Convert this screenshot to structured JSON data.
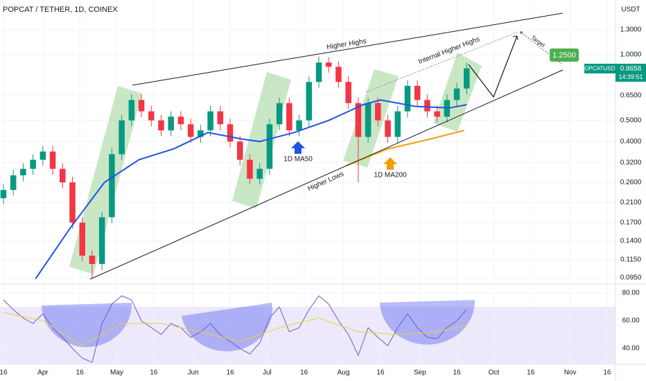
{
  "chart_data": [
    {
      "type": "candlestick",
      "title": "POPCAT / TETHER, 1D, COINEX",
      "currency": "USDT",
      "symbol": "POPCATUSDT",
      "last_price": "0.8658",
      "countdown": "14:39:51",
      "up_color": "#089981",
      "down_color": "#f23645",
      "log_y": true,
      "grid": true,
      "x": [
        0,
        4,
        8,
        12,
        16,
        20,
        24,
        28,
        32,
        36,
        40,
        44,
        48,
        52,
        56,
        60,
        64,
        68,
        72,
        76,
        80,
        84,
        88,
        92,
        96,
        100,
        104,
        108,
        112,
        116,
        120,
        124,
        128,
        132,
        136,
        140,
        144,
        148,
        152,
        156,
        160,
        164,
        168,
        172,
        176,
        180,
        184,
        188
      ],
      "open": [
        0.22,
        0.24,
        0.28,
        0.3,
        0.33,
        0.36,
        0.3,
        0.26,
        0.17,
        0.12,
        0.11,
        0.18,
        0.35,
        0.5,
        0.62,
        0.55,
        0.5,
        0.45,
        0.52,
        0.48,
        0.42,
        0.45,
        0.55,
        0.48,
        0.4,
        0.33,
        0.27,
        0.3,
        0.48,
        0.6,
        0.45,
        0.5,
        0.75,
        0.92,
        0.88,
        0.75,
        0.6,
        0.42,
        0.6,
        0.5,
        0.42,
        0.55,
        0.72,
        0.62,
        0.55,
        0.52,
        0.62,
        0.7
      ],
      "high": [
        0.255,
        0.297,
        0.318,
        0.35,
        0.382,
        0.382,
        0.318,
        0.276,
        0.18,
        0.127,
        0.191,
        0.371,
        0.53,
        0.657,
        0.657,
        0.583,
        0.53,
        0.551,
        0.551,
        0.509,
        0.477,
        0.583,
        0.583,
        0.509,
        0.424,
        0.35,
        0.318,
        0.509,
        0.636,
        0.636,
        0.53,
        0.795,
        0.98,
        0.975,
        0.933,
        0.795,
        0.636,
        0.636,
        0.636,
        0.53,
        0.583,
        0.763,
        0.763,
        0.657,
        0.583,
        0.657,
        0.742,
        0.918
      ],
      "low": [
        0.207,
        0.226,
        0.263,
        0.282,
        0.31,
        0.282,
        0.244,
        0.16,
        0.113,
        0.095,
        0.103,
        0.169,
        0.329,
        0.47,
        0.517,
        0.47,
        0.423,
        0.423,
        0.451,
        0.395,
        0.395,
        0.423,
        0.451,
        0.376,
        0.31,
        0.254,
        0.254,
        0.282,
        0.451,
        0.423,
        0.423,
        0.47,
        0.705,
        0.827,
        0.705,
        0.564,
        0.26,
        0.395,
        0.47,
        0.395,
        0.395,
        0.517,
        0.583,
        0.517,
        0.489,
        0.489,
        0.583,
        0.658
      ],
      "close": [
        0.24,
        0.28,
        0.3,
        0.33,
        0.36,
        0.3,
        0.26,
        0.17,
        0.12,
        0.11,
        0.18,
        0.35,
        0.5,
        0.62,
        0.55,
        0.5,
        0.45,
        0.52,
        0.48,
        0.42,
        0.45,
        0.55,
        0.48,
        0.4,
        0.33,
        0.27,
        0.3,
        0.48,
        0.6,
        0.45,
        0.5,
        0.75,
        0.92,
        0.88,
        0.75,
        0.6,
        0.42,
        0.6,
        0.5,
        0.42,
        0.55,
        0.72,
        0.62,
        0.55,
        0.52,
        0.62,
        0.7,
        0.8658
      ],
      "overlays": [
        {
          "color": "#1e53e5",
          "x": [
            13,
            27,
            41,
            55,
            69,
            83,
            97,
            104,
            118,
            132,
            146,
            153,
            167,
            181,
            188
          ],
          "values": [
            0.094,
            0.16,
            0.26,
            0.33,
            0.37,
            0.44,
            0.41,
            0.4,
            0.44,
            0.5,
            0.59,
            0.62,
            0.58,
            0.57,
            0.59
          ]
        },
        {
          "color": "#f59d0c",
          "x": [
            139,
            156,
            173,
            187
          ],
          "values": [
            0.31,
            0.37,
            0.41,
            0.45
          ]
        }
      ],
      "xlim": [
        -1.4,
        248.4
      ],
      "ylim": [
        0.089,
        1.78
      ],
      "yticks": [
        {
          "value": 1.3,
          "label": "1.3000"
        },
        {
          "value": 1.0,
          "label": "1.0000"
        },
        {
          "value": 0.65,
          "label": "0.6500"
        },
        {
          "value": 0.5,
          "label": "0.5000"
        },
        {
          "value": 0.4,
          "label": "0.4000"
        },
        {
          "value": 0.32,
          "label": "0.3200"
        },
        {
          "value": 0.26,
          "label": "0.2600"
        },
        {
          "value": 0.21,
          "label": "0.2100"
        },
        {
          "value": 0.17,
          "label": "0.1700"
        },
        {
          "value": 0.14,
          "label": "0.1400"
        },
        {
          "value": 0.115,
          "label": "0.1150"
        },
        {
          "value": 0.095,
          "label": "0.0950"
        }
      ],
      "xticks": [
        {
          "value": 0,
          "label": "16"
        },
        {
          "value": 16,
          "label": "Apr"
        },
        {
          "value": 31,
          "label": "16"
        },
        {
          "value": 46,
          "label": "May"
        },
        {
          "value": 61,
          "label": "16"
        },
        {
          "value": 77,
          "label": "Jun"
        },
        {
          "value": 92,
          "label": "16"
        },
        {
          "value": 107,
          "label": "Jul"
        },
        {
          "value": 122,
          "label": "16"
        },
        {
          "value": 138,
          "label": "Aug"
        },
        {
          "value": 153,
          "label": "16"
        },
        {
          "value": 169,
          "label": "Sep"
        },
        {
          "value": 184,
          "label": "16"
        },
        {
          "value": 199,
          "label": "Oct"
        },
        {
          "value": 214,
          "label": "16"
        },
        {
          "value": 230,
          "label": "Nov"
        },
        {
          "value": 245,
          "label": "16"
        }
      ],
      "annotations": {
        "higher_highs": "Higher Highs",
        "internal_higher_highs": "Internal Higher Highs",
        "higher_lows": "Higher Lows",
        "ma50": "1D MA50",
        "ma200": "1D MA200",
        "target": "Target",
        "target_price": "1.2500"
      }
    },
    {
      "type": "line",
      "color": "#6a5acd",
      "grid": true,
      "x": [
        0,
        4,
        8,
        12,
        16,
        20,
        24,
        28,
        32,
        36,
        40,
        44,
        48,
        52,
        56,
        60,
        64,
        68,
        72,
        76,
        80,
        84,
        88,
        92,
        96,
        100,
        104,
        108,
        112,
        116,
        120,
        124,
        128,
        132,
        136,
        140,
        144,
        148,
        152,
        156,
        160,
        164,
        168,
        172,
        176,
        180,
        184,
        188
      ],
      "values": [
        75,
        68,
        62,
        58,
        65,
        55,
        48,
        40,
        33,
        30,
        58,
        72,
        78,
        75,
        60,
        55,
        50,
        58,
        55,
        48,
        52,
        58,
        50,
        45,
        40,
        36,
        44,
        62,
        70,
        52,
        55,
        68,
        78,
        72,
        60,
        50,
        35,
        55,
        48,
        42,
        55,
        65,
        55,
        48,
        47,
        55,
        60,
        68
      ],
      "overlays": [
        {
          "color": "#e8d13a",
          "x": [
            0,
            16,
            32,
            48,
            64,
            80,
            96,
            112,
            128,
            144,
            160,
            176,
            188
          ],
          "values": [
            66,
            60,
            42,
            58,
            58,
            52,
            45,
            55,
            62,
            52,
            50,
            52,
            57
          ]
        }
      ],
      "xlim": [
        -1.4,
        248.4
      ],
      "ylim": [
        29,
        86.5
      ],
      "yticks": [
        {
          "value": 80,
          "label": "80.00"
        },
        {
          "value": 60,
          "label": "60.00"
        },
        {
          "value": 40,
          "label": "40.00"
        }
      ]
    }
  ]
}
